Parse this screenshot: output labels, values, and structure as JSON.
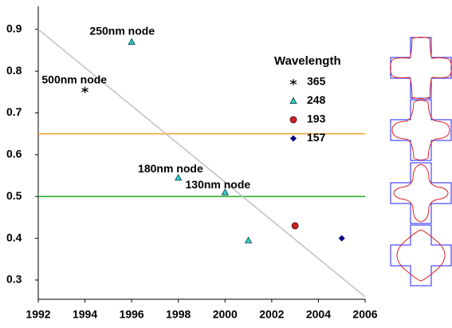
{
  "chart_data": {
    "type": "scatter",
    "xlim": [
      1992,
      2006
    ],
    "xticks": [
      1992,
      1994,
      1996,
      1998,
      2000,
      2002,
      2004,
      2006
    ],
    "ylim": [
      0.254,
      0.955
    ],
    "yticks": [
      0.3,
      0.4,
      0.5,
      0.6,
      0.7,
      0.8,
      0.9
    ],
    "legend_title": "Wavelength",
    "legend": "upper right",
    "series": [
      {
        "name": "365",
        "color": "#000000",
        "marker": "star",
        "x": [
          1994
        ],
        "values": [
          0.755
        ]
      },
      {
        "name": "248",
        "color": "#33cccc",
        "marker": "triangle",
        "x": [
          1996,
          1998,
          2000,
          2001
        ],
        "values": [
          0.87,
          0.545,
          0.51,
          0.395
        ]
      },
      {
        "name": "193",
        "color": "#cc2222",
        "marker": "circle",
        "x": [
          2003
        ],
        "values": [
          0.43
        ]
      },
      {
        "name": "157",
        "color": "#000080",
        "marker": "diamond",
        "x": [
          2005
        ],
        "values": [
          0.4
        ]
      }
    ],
    "hlines": [
      {
        "value": 0.65,
        "color": "#f0a030"
      },
      {
        "value": 0.5,
        "color": "#22aa22"
      }
    ],
    "trend": {
      "color": "#c0c0c0",
      "x": [
        1992,
        2006
      ],
      "values": [
        0.9,
        0.26
      ]
    },
    "annotations": [
      {
        "text": "250nm node",
        "x": 1994.2,
        "y": 0.894
      },
      {
        "text": "500nm node",
        "x": 1992.15,
        "y": 0.778
      },
      {
        "text": "180nm node",
        "x": 1996.27,
        "y": 0.565
      },
      {
        "text": "130nm node",
        "x": 1998.3,
        "y": 0.527
      }
    ]
  }
}
